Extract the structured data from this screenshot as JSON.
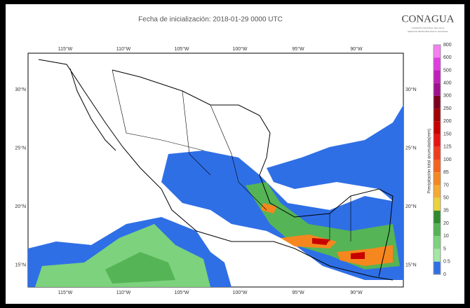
{
  "header": {
    "title": "Fecha de inicialización: 2018-01-29 0000 UTC"
  },
  "logo": {
    "name": "CONAGUA",
    "line1": "COMISIÓN NACIONAL DEL AGUA",
    "line2": "SERVICIO METEOROLÓGICO NACIONAL"
  },
  "map": {
    "lon_labels_top": [
      "115°W",
      "110°W",
      "105°W",
      "100°W",
      "95°W",
      "90°W"
    ],
    "lon_labels_bottom": [
      "115°W",
      "110°W",
      "105°W",
      "100°W",
      "95°W",
      "90°W"
    ],
    "lat_labels_left": [
      "30°N",
      "25°N",
      "20°N",
      "15°N"
    ],
    "lat_labels_right": [
      "30°N",
      "25°N",
      "20°N",
      "15°N"
    ]
  },
  "colorbar": {
    "title": "Precipitación total acumulada(mm)",
    "labels": [
      "800",
      "600",
      "500",
      "400",
      "300",
      "250",
      "200",
      "150",
      "125",
      "100",
      "85",
      "70",
      "50",
      "35",
      "20",
      "10",
      "5",
      "0.5",
      "0"
    ],
    "colors": [
      "#f57ff0",
      "#e03ce0",
      "#c01fb8",
      "#a0108f",
      "#7a0020",
      "#a00000",
      "#c80000",
      "#e81414",
      "#f03c1e",
      "#f5641e",
      "#f5871e",
      "#f5aa32",
      "#ebd23c",
      "#2e8b2e",
      "#55b455",
      "#7dd27d",
      "#a5e6a5",
      "#2f6fe6"
    ]
  }
}
